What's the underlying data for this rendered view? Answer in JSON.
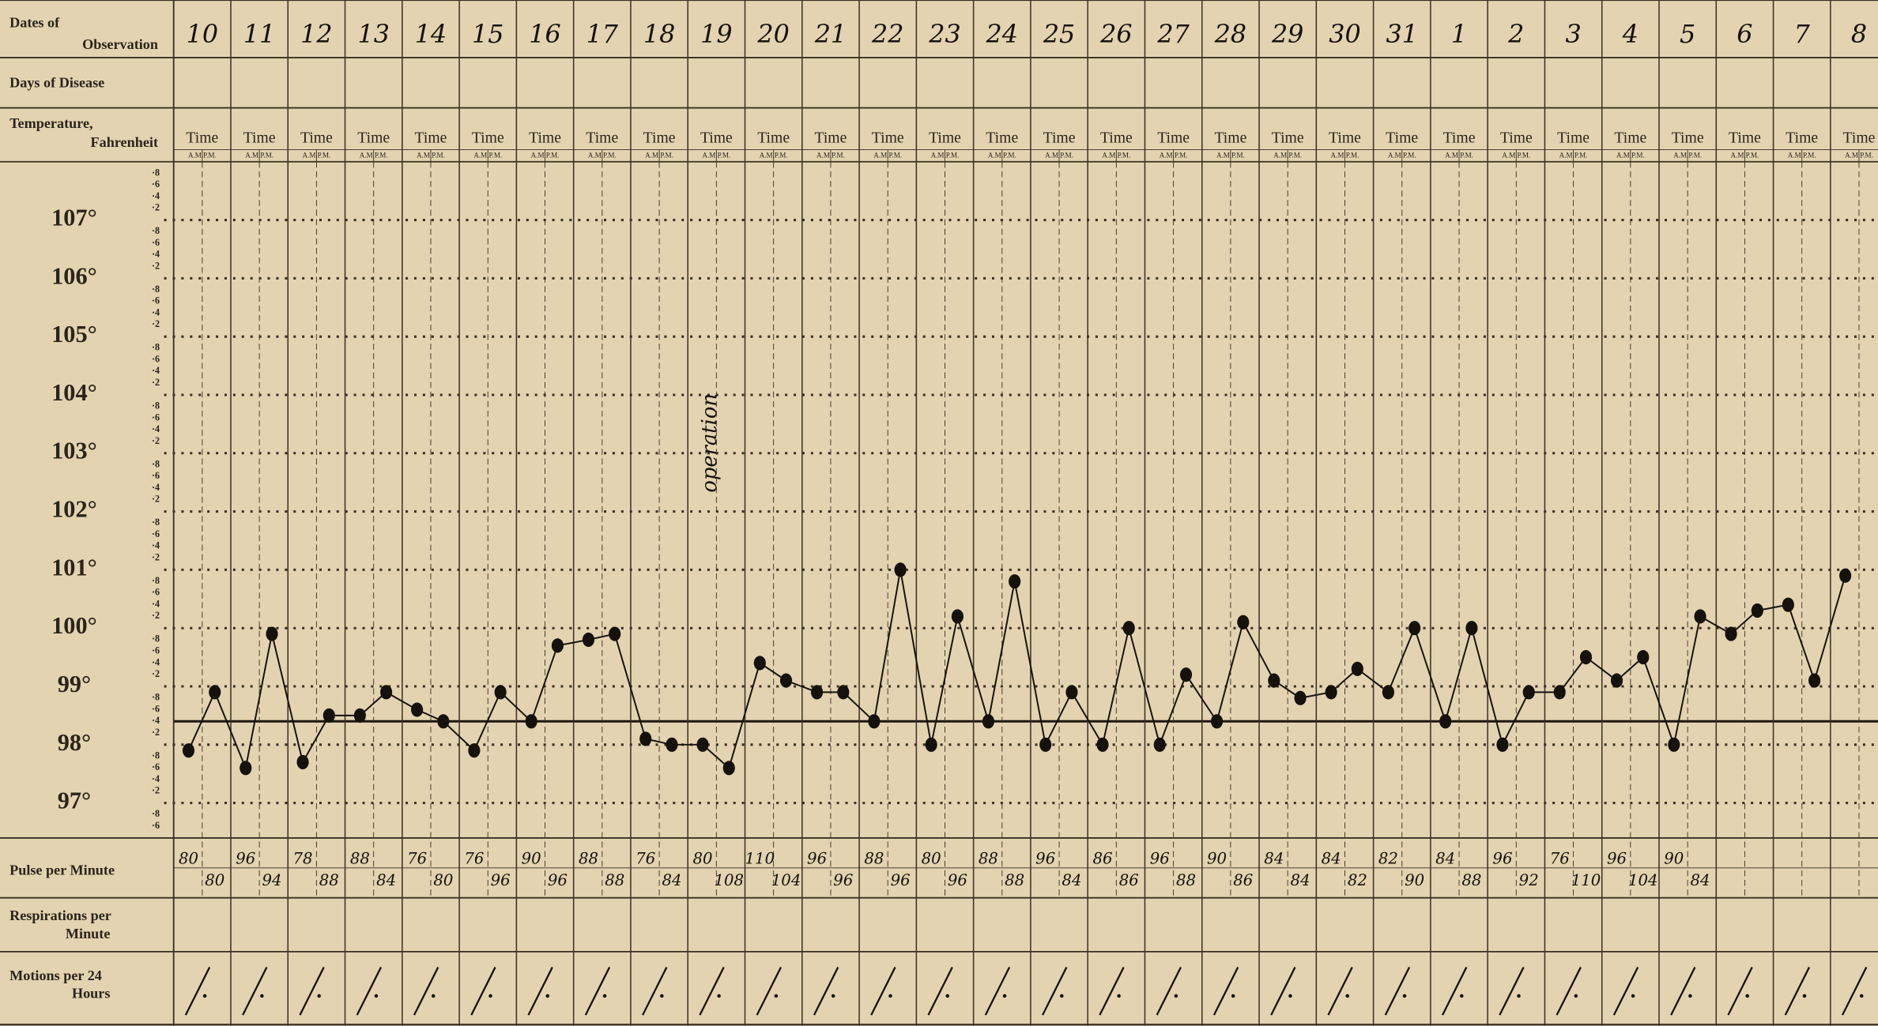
{
  "labels": {
    "dates": [
      "Dates of",
      "Observation"
    ],
    "days": "Days of Disease",
    "temperature": [
      "Temperature,",
      "Fahrenheit"
    ],
    "pulse": "Pulse per Minute",
    "respirations": [
      "Respirations per",
      "Minute"
    ],
    "motions": [
      "Motions per 24",
      "Hours"
    ],
    "time": "Time",
    "ampm": "A.M.P.M."
  },
  "dates": [
    10,
    11,
    12,
    13,
    14,
    15,
    16,
    17,
    18,
    19,
    20,
    21,
    22,
    23,
    24,
    25,
    26,
    27,
    28,
    29,
    30,
    31,
    1,
    2,
    3,
    4,
    5,
    6,
    7,
    8
  ],
  "temperature": {
    "ylim": [
      96.4,
      108
    ],
    "ticks": [
      {
        "value": 107,
        "label": "107°"
      },
      {
        "value": 106,
        "label": "106°"
      },
      {
        "value": 105,
        "label": "105°"
      },
      {
        "value": 104,
        "label": "104°"
      },
      {
        "value": 103,
        "label": "103°"
      },
      {
        "value": 102,
        "label": "102°"
      },
      {
        "value": 101,
        "label": "101°"
      },
      {
        "value": 100,
        "label": "100°"
      },
      {
        "value": 99,
        "label": "99°"
      },
      {
        "value": 98,
        "label": "98°"
      },
      {
        "value": 97,
        "label": "97°"
      }
    ],
    "fraction_labels": [
      "·8",
      "·6",
      "·4",
      "·2"
    ],
    "normal_line": 98.4,
    "annotation": "operation",
    "readings": [
      97.9,
      98.9,
      97.6,
      99.9,
      97.7,
      98.5,
      98.5,
      98.9,
      98.6,
      98.4,
      97.9,
      98.9,
      98.4,
      99.7,
      99.8,
      99.9,
      98.1,
      98.0,
      98.0,
      97.6,
      99.4,
      99.1,
      98.9,
      98.9,
      98.4,
      101.0,
      98.0,
      100.2,
      98.4,
      100.8,
      98.0,
      98.9,
      98.0,
      100.0,
      98.0,
      99.2,
      98.4,
      100.1,
      99.1,
      98.8,
      98.9,
      99.3,
      98.9,
      100.0,
      98.4,
      100.0,
      98.0,
      98.9,
      98.9,
      99.5,
      99.1,
      99.5,
      98.0,
      100.2,
      99.9,
      100.3,
      100.4,
      99.1,
      100.9,
      null
    ]
  },
  "pulse": [
    80,
    80,
    96,
    94,
    78,
    88,
    88,
    84,
    76,
    80,
    76,
    96,
    90,
    96,
    88,
    88,
    76,
    84,
    80,
    108,
    110,
    104,
    96,
    96,
    88,
    96,
    80,
    96,
    88,
    88,
    96,
    84,
    86,
    86,
    96,
    88,
    90,
    86,
    84,
    84,
    84,
    82,
    82,
    90,
    84,
    88,
    96,
    92,
    76,
    110,
    96,
    104,
    90,
    84,
    null,
    null,
    null,
    null,
    null,
    null
  ]
}
